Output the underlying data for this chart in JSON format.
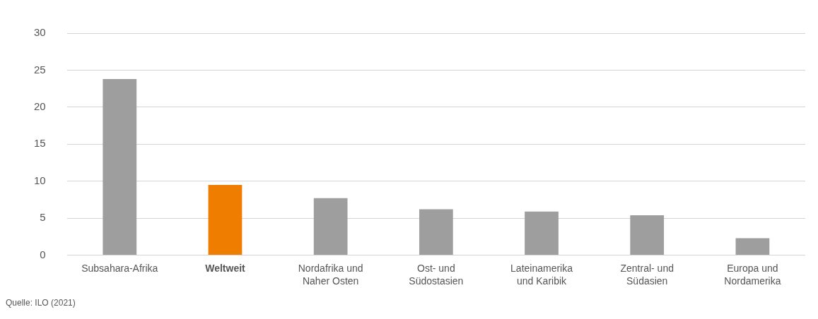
{
  "chart_data": {
    "type": "bar",
    "categories": [
      "Subsahara-Afrika",
      "Weltweit",
      "Nordafrika und Naher Osten",
      "Ost- und Südostasien",
      "Lateinamerika und Karibik",
      "Zentral- und Südasien",
      "Europa und Nordamerika"
    ],
    "values": [
      23.8,
      9.5,
      7.7,
      6.2,
      5.9,
      5.4,
      2.3
    ],
    "colors": [
      "#9d9e9d",
      "#ef7d00",
      "#9d9e9d",
      "#9d9e9d",
      "#9d9e9d",
      "#9d9e9d",
      "#9d9e9d"
    ],
    "ylim": [
      0,
      30
    ],
    "yticks": [
      0,
      5,
      10,
      15,
      20,
      25,
      30
    ],
    "grid": "y",
    "legend": false,
    "annotations": [
      "Quelle: ILO (2021)"
    ]
  }
}
